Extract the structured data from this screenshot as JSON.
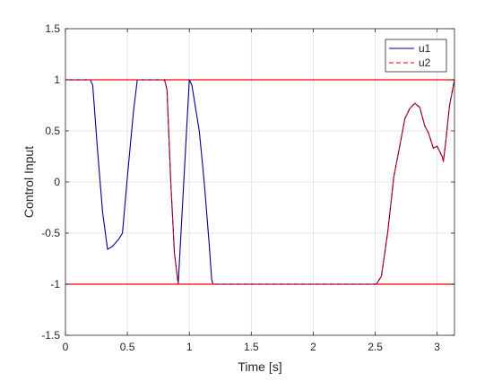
{
  "chart_data": {
    "type": "line",
    "title": "",
    "xlabel": "Time [s]",
    "ylabel": "Control Input",
    "xlim": [
      0,
      3.14
    ],
    "ylim": [
      -1.5,
      1.5
    ],
    "grid": true,
    "legend_position": "top-right",
    "x_ticks": [
      0,
      0.5,
      1,
      1.5,
      2,
      2.5,
      3
    ],
    "x_tick_labels": [
      "0",
      "0.5",
      "1",
      "1.5",
      "2",
      "2.5",
      "3"
    ],
    "y_ticks": [
      -1.5,
      -1,
      -0.5,
      0,
      0.5,
      1,
      1.5
    ],
    "y_tick_labels": [
      "-1.5",
      "-1",
      "-0.5",
      "0",
      "0.5",
      "1",
      "1.5"
    ],
    "reference_lines": [
      {
        "y": 1,
        "color": "#ff0000"
      },
      {
        "y": -1,
        "color": "#ff0000"
      }
    ],
    "series": [
      {
        "name": "u1",
        "color": "#00008b",
        "dash": "solid",
        "points": [
          [
            0,
            1
          ],
          [
            0.2,
            1
          ],
          [
            0.22,
            0.95
          ],
          [
            0.26,
            0.3
          ],
          [
            0.3,
            -0.3
          ],
          [
            0.34,
            -0.66
          ],
          [
            0.38,
            -0.63
          ],
          [
            0.43,
            -0.56
          ],
          [
            0.46,
            -0.5
          ],
          [
            0.5,
            0.05
          ],
          [
            0.55,
            0.7
          ],
          [
            0.58,
            1
          ],
          [
            0.8,
            1
          ],
          [
            0.82,
            0.9
          ],
          [
            0.85,
            0.0
          ],
          [
            0.88,
            -0.7
          ],
          [
            0.91,
            -1
          ],
          [
            1.0,
            1
          ],
          [
            1.02,
            0.95
          ],
          [
            1.08,
            0.5
          ],
          [
            1.12,
            0.0
          ],
          [
            1.16,
            -0.6
          ],
          [
            1.18,
            -0.95
          ],
          [
            1.19,
            -1
          ],
          [
            2.51,
            -1
          ],
          [
            2.55,
            -0.92
          ],
          [
            2.6,
            -0.5
          ],
          [
            2.65,
            0.05
          ],
          [
            2.69,
            0.3
          ],
          [
            2.74,
            0.62
          ],
          [
            2.78,
            0.72
          ],
          [
            2.82,
            0.77
          ],
          [
            2.86,
            0.73
          ],
          [
            2.9,
            0.55
          ],
          [
            2.93,
            0.48
          ],
          [
            2.97,
            0.33
          ],
          [
            3.0,
            0.35
          ],
          [
            3.04,
            0.25
          ],
          [
            3.05,
            0.2
          ],
          [
            3.07,
            0.4
          ],
          [
            3.1,
            0.75
          ],
          [
            3.14,
            1.0
          ]
        ]
      },
      {
        "name": "u2",
        "color": "#ff0000",
        "dash": "dashed",
        "points": [
          [
            0,
            1
          ],
          [
            0.8,
            1
          ],
          [
            0.82,
            0.9
          ],
          [
            0.85,
            0.0
          ],
          [
            0.88,
            -0.7
          ],
          [
            0.91,
            -1
          ],
          [
            2.51,
            -1
          ],
          [
            2.55,
            -0.92
          ],
          [
            2.6,
            -0.5
          ],
          [
            2.65,
            0.05
          ],
          [
            2.69,
            0.3
          ],
          [
            2.74,
            0.62
          ],
          [
            2.78,
            0.72
          ],
          [
            2.82,
            0.77
          ],
          [
            2.86,
            0.73
          ],
          [
            2.9,
            0.55
          ],
          [
            2.93,
            0.48
          ],
          [
            2.97,
            0.33
          ],
          [
            3.0,
            0.35
          ],
          [
            3.04,
            0.25
          ],
          [
            3.05,
            0.2
          ],
          [
            3.07,
            0.4
          ],
          [
            3.1,
            0.75
          ],
          [
            3.14,
            1.0
          ]
        ]
      }
    ]
  }
}
